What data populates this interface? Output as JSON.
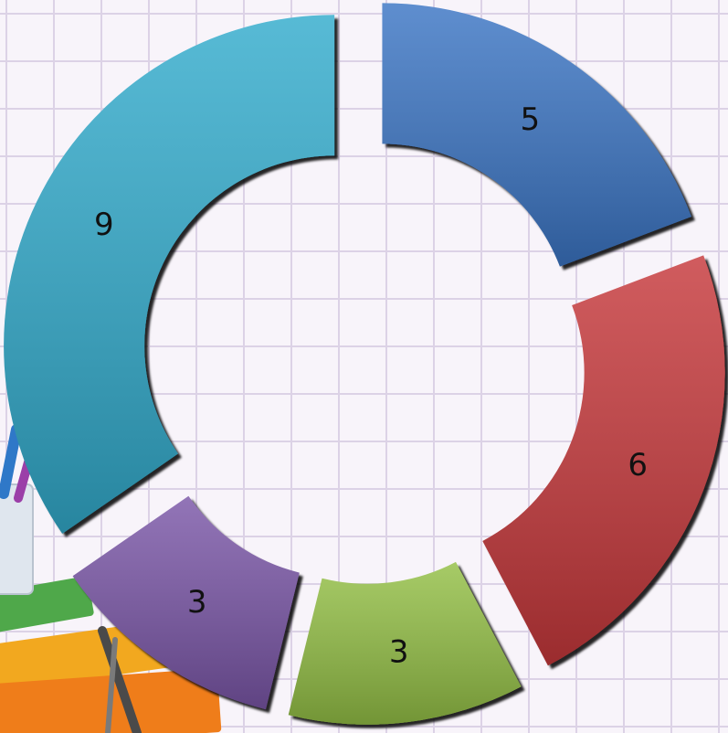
{
  "chart_data": {
    "type": "pie",
    "variant": "exploded-doughnut",
    "start_angle_deg": 90,
    "direction": "clockwise",
    "show_data_labels": true,
    "legend": "none",
    "title": "",
    "slices": [
      {
        "value": 5,
        "label": "5",
        "color": "#3a74c4"
      },
      {
        "value": 6,
        "label": "6",
        "color": "#c6393a"
      },
      {
        "value": 3,
        "label": "3",
        "color": "#93bf44"
      },
      {
        "value": 3,
        "label": "3",
        "color": "#7a56a7"
      },
      {
        "value": 9,
        "label": "9",
        "color": "#31abcc"
      }
    ]
  },
  "decoration": {
    "background": "grid-paper",
    "grid_color": "#dcd2e6",
    "clipart": "pencil-cup-and-books-icon"
  }
}
